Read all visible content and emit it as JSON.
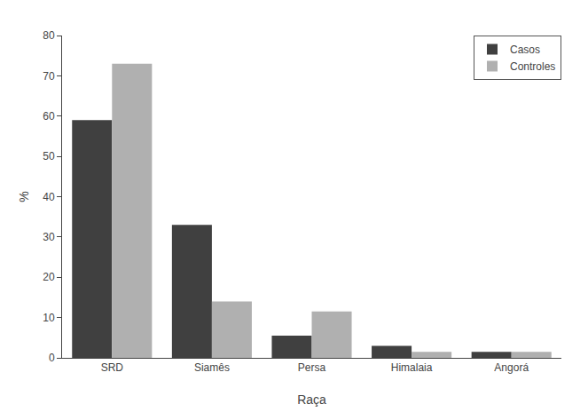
{
  "chart_data": {
    "type": "bar",
    "xlabel": "Raça",
    "ylabel": "%",
    "categories": [
      "SRD",
      "Siamês",
      "Persa",
      "Himalaia",
      "Angorá"
    ],
    "series": [
      {
        "name": "Casos",
        "color": "#404040",
        "values": [
          59,
          33,
          5.5,
          3,
          1.5
        ]
      },
      {
        "name": "Controles",
        "color": "#b0b0b0",
        "values": [
          73,
          14,
          11.5,
          1.5,
          1.5
        ]
      }
    ],
    "ylim": [
      0,
      80
    ],
    "yticks": [
      0,
      10,
      20,
      30,
      40,
      50,
      60,
      70,
      80
    ],
    "grid": false,
    "legend": "upper right"
  }
}
